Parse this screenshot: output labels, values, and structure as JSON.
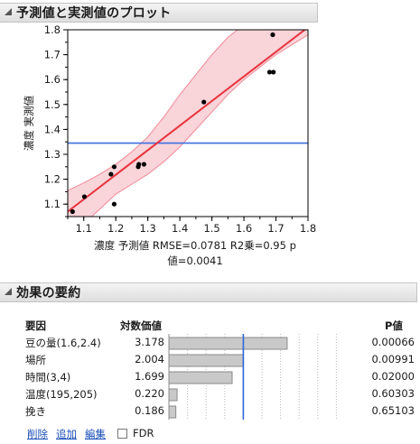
{
  "sections": {
    "plot_title": "予測値と実測値のプロット",
    "effects_title": "効果の要約"
  },
  "plot": {
    "y_axis_label": "濃度 実測値",
    "caption_line1": "濃度 予測値 RMSE=0.0781 R2乗=0.95 p",
    "caption_line2": "値=0.0041"
  },
  "chart_data": {
    "type": "scatter",
    "xlabel": "濃度 予測値",
    "ylabel": "濃度 実測値",
    "xlim": [
      1.05,
      1.8
    ],
    "ylim": [
      1.05,
      1.8
    ],
    "x_ticks": [
      "1.1",
      "1.2",
      "1.3",
      "1.4",
      "1.5",
      "1.6",
      "1.7",
      "1.8"
    ],
    "y_ticks": [
      "1.1",
      "1.2",
      "1.3",
      "1.4",
      "1.5",
      "1.6",
      "1.7",
      "1.8"
    ],
    "points": [
      {
        "x": 1.065,
        "y": 1.07
      },
      {
        "x": 1.102,
        "y": 1.13
      },
      {
        "x": 1.185,
        "y": 1.22
      },
      {
        "x": 1.195,
        "y": 1.25
      },
      {
        "x": 1.195,
        "y": 1.1
      },
      {
        "x": 1.27,
        "y": 1.25
      },
      {
        "x": 1.272,
        "y": 1.26
      },
      {
        "x": 1.288,
        "y": 1.26
      },
      {
        "x": 1.475,
        "y": 1.51
      },
      {
        "x": 1.68,
        "y": 1.63
      },
      {
        "x": 1.692,
        "y": 1.63
      },
      {
        "x": 1.69,
        "y": 1.78
      }
    ],
    "fit_line": [
      {
        "x": 1.05,
        "y": 1.07
      },
      {
        "x": 1.8,
        "y": 1.81
      }
    ],
    "mean_line_y": 1.345,
    "confidence_band": {
      "upper": [
        [
          1.05,
          1.155
        ],
        [
          1.1,
          1.185
        ],
        [
          1.15,
          1.22
        ],
        [
          1.2,
          1.26
        ],
        [
          1.25,
          1.31
        ],
        [
          1.3,
          1.37
        ],
        [
          1.35,
          1.45
        ],
        [
          1.4,
          1.54
        ],
        [
          1.45,
          1.62
        ],
        [
          1.5,
          1.7
        ],
        [
          1.55,
          1.77
        ],
        [
          1.6,
          1.82
        ],
        [
          1.65,
          1.85
        ],
        [
          1.7,
          1.87
        ],
        [
          1.75,
          1.89
        ],
        [
          1.8,
          1.91
        ]
      ],
      "lower": [
        [
          1.05,
          0.97
        ],
        [
          1.1,
          1.02
        ],
        [
          1.15,
          1.08
        ],
        [
          1.2,
          1.14
        ],
        [
          1.25,
          1.18
        ],
        [
          1.3,
          1.22
        ],
        [
          1.35,
          1.27
        ],
        [
          1.4,
          1.33
        ],
        [
          1.45,
          1.4
        ],
        [
          1.5,
          1.47
        ],
        [
          1.55,
          1.54
        ],
        [
          1.6,
          1.6
        ],
        [
          1.65,
          1.65
        ],
        [
          1.7,
          1.7
        ],
        [
          1.75,
          1.74
        ],
        [
          1.8,
          1.78
        ]
      ]
    },
    "colors": {
      "fit": "#e8333d",
      "band": "#f7c6cc",
      "band_edge": "#f08a96",
      "mean": "#3b6fe0",
      "points": "#000000"
    }
  },
  "effects_table": {
    "headers": {
      "source": "要因",
      "logworth": "対数価値",
      "pvalue": "P値"
    },
    "rows": [
      {
        "source": "豆の量(1.6,2.4)",
        "logworth": "3.178",
        "pvalue": "0.00066",
        "value": 3.178
      },
      {
        "source": "場所",
        "logworth": "2.004",
        "pvalue": "0.00991",
        "value": 2.004
      },
      {
        "source": "時間(3,4)",
        "logworth": "1.699",
        "pvalue": "0.02000",
        "value": 1.699
      },
      {
        "source": "温度(195,205)",
        "logworth": "0.220",
        "pvalue": "0.60303",
        "value": 0.22
      },
      {
        "source": "挽き",
        "logworth": "0.186",
        "pvalue": "0.65103",
        "value": 0.186
      }
    ],
    "reference_value": 2
  },
  "buttons": {
    "remove": "削除",
    "add": "追加",
    "edit": "編集",
    "fdr": "FDR"
  }
}
